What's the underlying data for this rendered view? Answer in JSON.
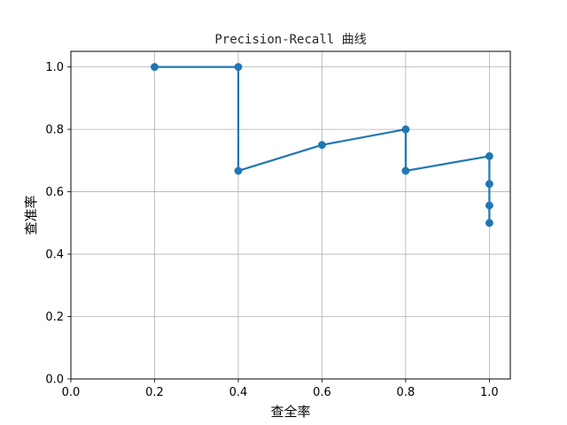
{
  "chart_data": {
    "type": "line",
    "title": "Precision-Recall 曲线",
    "xlabel": "查全率",
    "ylabel": "查准率",
    "xlim": [
      0.0,
      1.05
    ],
    "ylim": [
      0.0,
      1.05
    ],
    "xticks": [
      0.0,
      0.2,
      0.4,
      0.6,
      0.8,
      1.0
    ],
    "yticks": [
      0.0,
      0.2,
      0.4,
      0.6,
      0.8,
      1.0
    ],
    "xtick_labels": [
      "0.0",
      "0.2",
      "0.4",
      "0.6",
      "0.8",
      "1.0"
    ],
    "ytick_labels": [
      "0.0",
      "0.2",
      "0.4",
      "0.6",
      "0.8",
      "1.0"
    ],
    "grid": true,
    "markers": true,
    "series": [
      {
        "color": "#1f77b4",
        "x": [
          0.2,
          0.4,
          0.4,
          0.6,
          0.8,
          0.8,
          1.0,
          1.0,
          1.0,
          1.0
        ],
        "y": [
          1.0,
          1.0,
          0.667,
          0.75,
          0.8,
          0.667,
          0.714,
          0.625,
          0.556,
          0.5
        ]
      }
    ]
  }
}
